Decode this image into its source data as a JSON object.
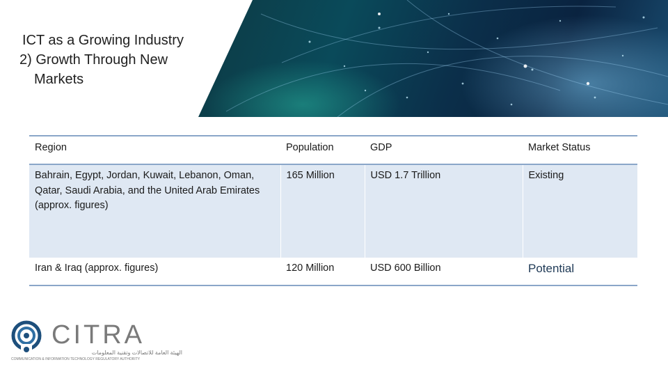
{
  "title": {
    "line1": "ICT as a Growing Industry",
    "line2": "2) Growth Through New",
    "line3": "Markets"
  },
  "table": {
    "headers": [
      "Region",
      "Population",
      "GDP",
      "Market Status"
    ],
    "rows": [
      [
        "Bahrain, Egypt, Jordan, Kuwait, Lebanon, Oman, Qatar, Saudi Arabia, and the United Arab Emirates (approx. figures)",
        "165 Million",
        "USD 1.7 Trillion",
        "Existing"
      ],
      [
        "Iran & Iraq (approx. figures)",
        "120 Million",
        "USD 600 Billion",
        "Potential"
      ]
    ]
  },
  "logo": {
    "wordmark": "CITRA",
    "arabic": "الهيئة العامة للاتصالات وتقنية المعلومات",
    "tagline": "COMMUNICATION & INFORMATION TECHNOLOGY REGULATORY AUTHORITY"
  },
  "colors": {
    "table_rule": "#8aa6c8",
    "row_fill": "#dfe8f3",
    "logo_blue": "#1d4f7c"
  }
}
